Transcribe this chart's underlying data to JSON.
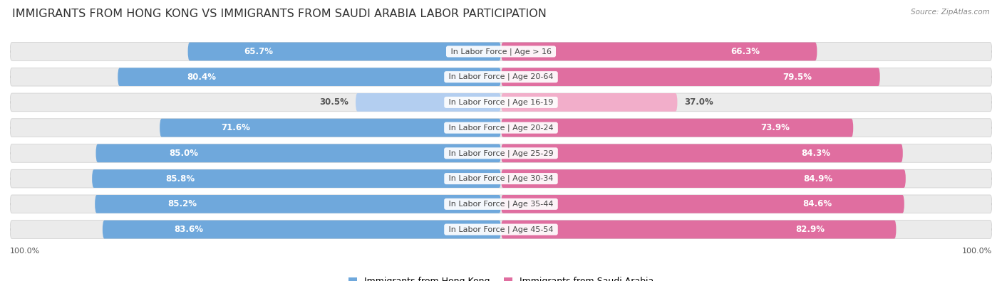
{
  "title": "IMMIGRANTS FROM HONG KONG VS IMMIGRANTS FROM SAUDI ARABIA LABOR PARTICIPATION",
  "source": "Source: ZipAtlas.com",
  "categories": [
    "In Labor Force | Age > 16",
    "In Labor Force | Age 20-64",
    "In Labor Force | Age 16-19",
    "In Labor Force | Age 20-24",
    "In Labor Force | Age 25-29",
    "In Labor Force | Age 30-34",
    "In Labor Force | Age 35-44",
    "In Labor Force | Age 45-54"
  ],
  "hong_kong_values": [
    65.7,
    80.4,
    30.5,
    71.6,
    85.0,
    85.8,
    85.2,
    83.6
  ],
  "saudi_arabia_values": [
    66.3,
    79.5,
    37.0,
    73.9,
    84.3,
    84.9,
    84.6,
    82.9
  ],
  "hong_kong_color": "#6fa8dc",
  "hong_kong_color_light": "#b3cef0",
  "saudi_arabia_color": "#e06ea0",
  "saudi_arabia_color_light": "#f2aeca",
  "row_bg_color": "#ebebeb",
  "background_color": "#ffffff",
  "title_fontsize": 11.5,
  "value_fontsize": 8.5,
  "cat_fontsize": 8.0,
  "legend_fontsize": 9,
  "max_value": 100.0,
  "legend_label_hk": "Immigrants from Hong Kong",
  "legend_label_sa": "Immigrants from Saudi Arabia",
  "bottom_label": "100.0%"
}
